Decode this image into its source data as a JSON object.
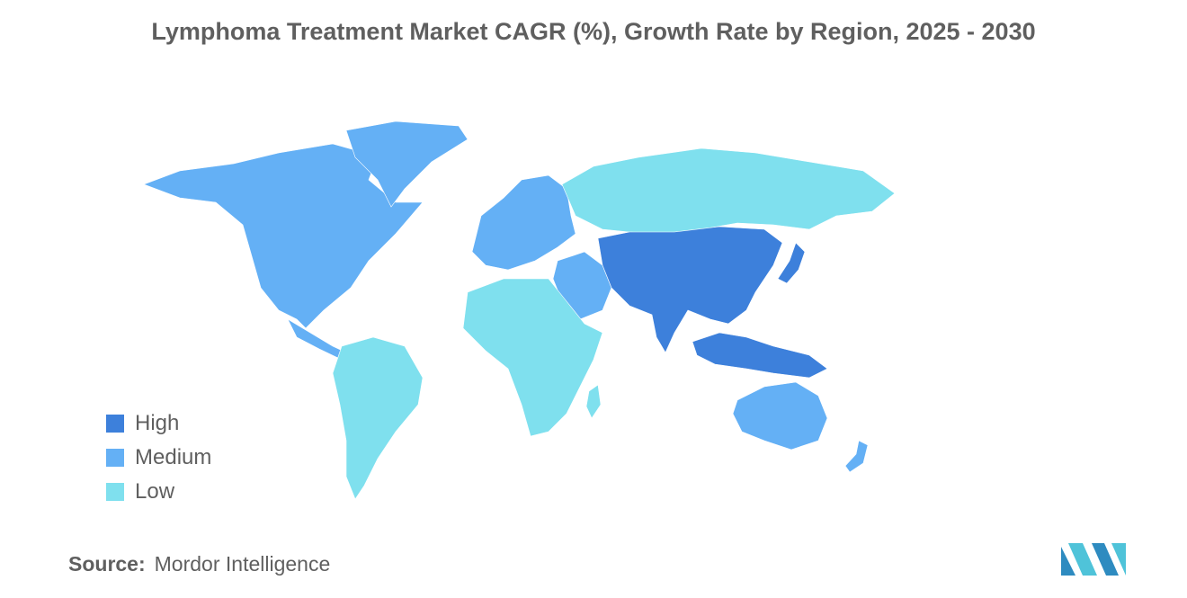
{
  "title": "Lymphoma Treatment Market CAGR (%), Growth Rate by Region, 2025 - 2030",
  "colors": {
    "High": "#3d80db",
    "Medium": "#64b0f5",
    "Low": "#7fe0ee",
    "NoData": "#a6a6a6"
  },
  "legend": [
    {
      "label": "High",
      "color": "#3d80db"
    },
    {
      "label": "Medium",
      "color": "#64b0f5"
    },
    {
      "label": "Low",
      "color": "#7fe0ee"
    }
  ],
  "regions": {
    "north_america": "Medium",
    "greenland": "Medium",
    "south_america": "Low",
    "europe": "Medium",
    "middle_east": "Medium",
    "africa": "Low",
    "russia": "Low",
    "asia_pacific": "High",
    "japan": "High",
    "southeast_asia": "High",
    "australia": "Medium",
    "new_zealand": "Medium"
  },
  "source": {
    "label": "Source:",
    "value": "Mordor Intelligence"
  },
  "logo_icon": "mordor-intelligence-logo"
}
